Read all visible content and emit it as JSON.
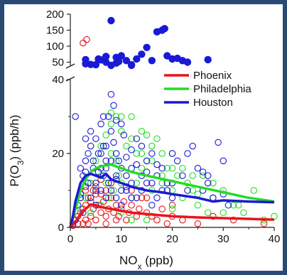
{
  "chart_data": {
    "type": "scatter",
    "xlabel_base": "NO",
    "xlabel_sub": "x",
    "xlabel_unit": " (ppb)",
    "ylabel_base": "P(O",
    "ylabel_sub": "3",
    "ylabel_unit": ") (ppb/h)",
    "xlim": [
      0,
      40
    ],
    "ylim_lower": [
      0,
      40
    ],
    "ylim_upper": [
      40,
      200
    ],
    "x_ticks": [
      "0",
      "10",
      "20",
      "30",
      "40"
    ],
    "y_ticks_lower": [
      "0",
      "20",
      "40"
    ],
    "y_ticks_upper": [
      "50",
      "100",
      "150",
      "200"
    ],
    "legend_position": "upper-right",
    "legend": [
      {
        "name": "Phoenix",
        "color": "#e8141b"
      },
      {
        "name": "Philadelphia",
        "color": "#22dd22"
      },
      {
        "name": "Houston",
        "color": "#1a1ad6"
      }
    ],
    "series": [
      {
        "name": "Phoenix",
        "color": "#e8141b",
        "line": [
          [
            0,
            0
          ],
          [
            1,
            1.5
          ],
          [
            2,
            3.5
          ],
          [
            3,
            5
          ],
          [
            4,
            6.2
          ],
          [
            5,
            6
          ],
          [
            6,
            5.5
          ],
          [
            8,
            5
          ],
          [
            10,
            4.5
          ],
          [
            12,
            4
          ],
          [
            15,
            3.6
          ],
          [
            20,
            3
          ],
          [
            25,
            2.7
          ],
          [
            30,
            2.5
          ],
          [
            35,
            2.3
          ],
          [
            40,
            2.1
          ]
        ],
        "points": [
          [
            0.5,
            0.5
          ],
          [
            1,
            2
          ],
          [
            1.5,
            3
          ],
          [
            2,
            4
          ],
          [
            2.5,
            5
          ],
          [
            3,
            2
          ],
          [
            3,
            6
          ],
          [
            3.5,
            8
          ],
          [
            4,
            3
          ],
          [
            4,
            7
          ],
          [
            4.5,
            5
          ],
          [
            5,
            9
          ],
          [
            5,
            2
          ],
          [
            5.5,
            6
          ],
          [
            6,
            4
          ],
          [
            6.5,
            7
          ],
          [
            7,
            3
          ],
          [
            7.5,
            5
          ],
          [
            8,
            8
          ],
          [
            8.5,
            4
          ],
          [
            9,
            6
          ],
          [
            9.5,
            3
          ],
          [
            10,
            5
          ],
          [
            10.5,
            7
          ],
          [
            11,
            2
          ],
          [
            11.5,
            4
          ],
          [
            12,
            6
          ],
          [
            13,
            3
          ],
          [
            13.5,
            5
          ],
          [
            14,
            8
          ],
          [
            15,
            4
          ],
          [
            16,
            3
          ],
          [
            17,
            2
          ],
          [
            18,
            5
          ],
          [
            19,
            1
          ],
          [
            20,
            3
          ],
          [
            22,
            2
          ],
          [
            25,
            1
          ],
          [
            28,
            3
          ],
          [
            32,
            2
          ],
          [
            38,
            1
          ],
          [
            2,
            8
          ],
          [
            3,
            10
          ],
          [
            4,
            12
          ],
          [
            5,
            11
          ],
          [
            6,
            13
          ],
          [
            7,
            10
          ],
          [
            8,
            12
          ],
          [
            6,
            9
          ],
          [
            4.5,
            10
          ],
          [
            3.5,
            1
          ],
          [
            2.5,
            1
          ],
          [
            1.5,
            1
          ],
          [
            7,
            1
          ],
          [
            9,
            2
          ],
          [
            12,
            10
          ],
          [
            15,
            8
          ],
          [
            20,
            6
          ],
          [
            2.5,
            110
          ],
          [
            3.2,
            121
          ]
        ]
      },
      {
        "name": "Philadelphia",
        "color": "#22dd22",
        "line": [
          [
            0,
            0
          ],
          [
            1,
            5
          ],
          [
            2,
            10
          ],
          [
            3,
            13
          ],
          [
            4,
            15
          ],
          [
            5,
            16
          ],
          [
            6,
            16.5
          ],
          [
            7,
            16.8
          ],
          [
            8,
            17
          ],
          [
            9,
            16.5
          ],
          [
            10,
            16
          ],
          [
            12,
            15
          ],
          [
            15,
            14
          ],
          [
            20,
            12.5
          ],
          [
            25,
            11
          ],
          [
            30,
            9.5
          ],
          [
            35,
            8
          ],
          [
            40,
            7
          ]
        ],
        "points": [
          [
            2,
            5
          ],
          [
            3,
            8
          ],
          [
            4,
            12
          ],
          [
            5,
            18
          ],
          [
            6,
            22
          ],
          [
            7,
            25
          ],
          [
            8,
            28
          ],
          [
            9,
            30
          ],
          [
            10,
            26
          ],
          [
            11,
            22
          ],
          [
            12,
            24
          ],
          [
            13,
            20
          ],
          [
            14,
            16
          ],
          [
            15,
            18
          ],
          [
            16,
            22
          ],
          [
            17,
            14
          ],
          [
            18,
            12
          ],
          [
            19,
            16
          ],
          [
            20,
            10
          ],
          [
            21,
            14
          ],
          [
            22,
            8
          ],
          [
            23,
            12
          ],
          [
            24,
            10
          ],
          [
            25,
            6
          ],
          [
            26,
            14
          ],
          [
            27,
            4
          ],
          [
            28,
            8
          ],
          [
            30,
            4
          ],
          [
            32,
            6
          ],
          [
            34,
            4
          ],
          [
            36,
            10
          ],
          [
            38,
            2
          ],
          [
            40,
            3
          ],
          [
            5,
            10
          ],
          [
            6,
            14
          ],
          [
            7,
            12
          ],
          [
            8,
            20
          ],
          [
            9,
            18
          ],
          [
            10,
            12
          ],
          [
            11,
            14
          ],
          [
            12,
            8
          ],
          [
            13,
            12
          ],
          [
            14,
            26
          ],
          [
            15,
            25
          ],
          [
            16,
            10
          ],
          [
            17,
            24
          ],
          [
            18,
            14
          ],
          [
            20,
            16
          ],
          [
            22,
            16
          ],
          [
            24,
            14
          ],
          [
            8,
            31
          ],
          [
            10,
            30
          ],
          [
            12,
            30
          ],
          [
            14,
            20
          ],
          [
            16,
            18
          ],
          [
            18,
            20
          ],
          [
            20,
            20
          ],
          [
            25,
            9
          ],
          [
            28,
            12
          ],
          [
            30,
            10
          ],
          [
            33,
            6
          ],
          [
            7.5,
            8
          ],
          [
            8.5,
            10
          ],
          [
            9.5,
            14
          ],
          [
            10,
            4
          ],
          [
            12,
            2
          ],
          [
            20,
            5
          ],
          [
            15,
            2
          ],
          [
            6,
            6
          ],
          [
            4,
            4
          ]
        ]
      },
      {
        "name": "Houston",
        "color": "#1a1ad6",
        "line": [
          [
            0,
            0
          ],
          [
            0.5,
            3
          ],
          [
            1,
            7
          ],
          [
            2,
            12
          ],
          [
            3,
            14
          ],
          [
            4,
            14.5
          ],
          [
            5,
            14
          ],
          [
            6,
            13.5
          ],
          [
            7,
            14.5
          ],
          [
            8,
            13
          ],
          [
            9,
            12.5
          ],
          [
            10,
            12
          ],
          [
            12,
            11
          ],
          [
            15,
            10
          ],
          [
            18,
            9.5
          ],
          [
            20,
            9
          ],
          [
            25,
            8
          ],
          [
            28,
            7
          ],
          [
            30,
            7.3
          ],
          [
            32,
            7.2
          ],
          [
            35,
            7
          ],
          [
            40,
            6.8
          ]
        ],
        "points": [
          [
            1,
            30
          ],
          [
            2,
            16
          ],
          [
            2.5,
            14
          ],
          [
            3,
            18
          ],
          [
            3.5,
            20
          ],
          [
            4,
            22
          ],
          [
            4.5,
            16
          ],
          [
            5,
            24
          ],
          [
            5.5,
            20
          ],
          [
            6,
            28
          ],
          [
            6.5,
            22
          ],
          [
            7,
            18
          ],
          [
            7.5,
            30
          ],
          [
            8,
            26
          ],
          [
            8.5,
            23
          ],
          [
            9,
            20
          ],
          [
            9.5,
            18
          ],
          [
            10,
            16
          ],
          [
            11,
            14
          ],
          [
            12,
            16
          ],
          [
            13,
            24
          ],
          [
            14,
            22
          ],
          [
            15,
            18
          ],
          [
            16,
            20
          ],
          [
            17,
            14
          ],
          [
            18,
            16
          ],
          [
            19,
            10
          ],
          [
            20,
            12
          ],
          [
            21,
            18
          ],
          [
            22,
            14
          ],
          [
            23,
            10
          ],
          [
            24,
            22
          ],
          [
            25,
            16
          ],
          [
            26,
            10
          ],
          [
            27,
            12
          ],
          [
            28,
            8
          ],
          [
            29,
            23
          ],
          [
            30,
            18
          ],
          [
            31,
            6
          ],
          [
            5,
            12
          ],
          [
            6,
            10
          ],
          [
            7,
            8
          ],
          [
            8,
            10
          ],
          [
            9,
            8
          ],
          [
            10,
            6
          ],
          [
            11,
            10
          ],
          [
            12,
            12
          ],
          [
            13,
            8
          ],
          [
            14,
            10
          ],
          [
            15,
            12
          ],
          [
            16,
            6
          ],
          [
            17,
            8
          ],
          [
            18,
            10
          ],
          [
            19,
            12
          ],
          [
            20,
            8
          ],
          [
            1.5,
            6
          ],
          [
            2,
            9
          ],
          [
            3,
            11
          ],
          [
            4,
            8
          ],
          [
            5,
            6
          ],
          [
            6,
            16
          ],
          [
            7,
            22
          ],
          [
            8,
            36
          ],
          [
            8.5,
            33
          ],
          [
            9,
            29
          ],
          [
            10,
            28
          ],
          [
            10.5,
            25
          ],
          [
            6.5,
            30
          ],
          [
            4,
            26
          ],
          [
            3,
            24
          ],
          [
            5.5,
            15
          ],
          [
            6.5,
            14
          ],
          [
            7.5,
            12
          ],
          [
            2.5,
            4
          ],
          [
            1,
            2
          ],
          [
            0.5,
            1
          ],
          [
            13,
            17
          ],
          [
            15,
            15
          ],
          [
            17,
            17
          ],
          [
            11,
            19
          ],
          [
            12,
            21
          ],
          [
            14,
            14
          ],
          [
            16,
            12
          ],
          [
            20,
            20
          ],
          [
            23,
            20
          ],
          [
            26,
            15
          ],
          [
            27,
            14
          ],
          [
            30,
            9
          ],
          [
            3.5,
            12
          ],
          [
            4.5,
            18
          ],
          [
            5,
            10
          ],
          [
            6,
            20
          ],
          [
            7,
            16
          ],
          [
            8,
            18
          ],
          [
            9,
            14
          ],
          [
            10,
            10
          ],
          [
            12,
            8
          ],
          [
            9,
            13
          ],
          [
            11,
            11
          ],
          [
            2,
            8
          ],
          [
            3,
            15
          ]
        ],
        "points_upper": [
          [
            3,
            58
          ],
          [
            3,
            45
          ],
          [
            5,
            42
          ],
          [
            6,
            57
          ],
          [
            7,
            50
          ],
          [
            7,
            68
          ],
          [
            8,
            40
          ],
          [
            8,
            180
          ],
          [
            9,
            65
          ],
          [
            9,
            47
          ],
          [
            10,
            70
          ],
          [
            11,
            55
          ],
          [
            12,
            40
          ],
          [
            13,
            60
          ],
          [
            14,
            75
          ],
          [
            15,
            96
          ],
          [
            16,
            55
          ],
          [
            17,
            145
          ],
          [
            18,
            150
          ],
          [
            19,
            70
          ],
          [
            20,
            60
          ],
          [
            21,
            62
          ],
          [
            22,
            55
          ],
          [
            23,
            50
          ],
          [
            27,
            58
          ],
          [
            9.5,
            52
          ],
          [
            12,
            42
          ],
          [
            4,
            43
          ],
          [
            5.5,
            60
          ],
          [
            18.5,
            155
          ]
        ]
      }
    ]
  }
}
